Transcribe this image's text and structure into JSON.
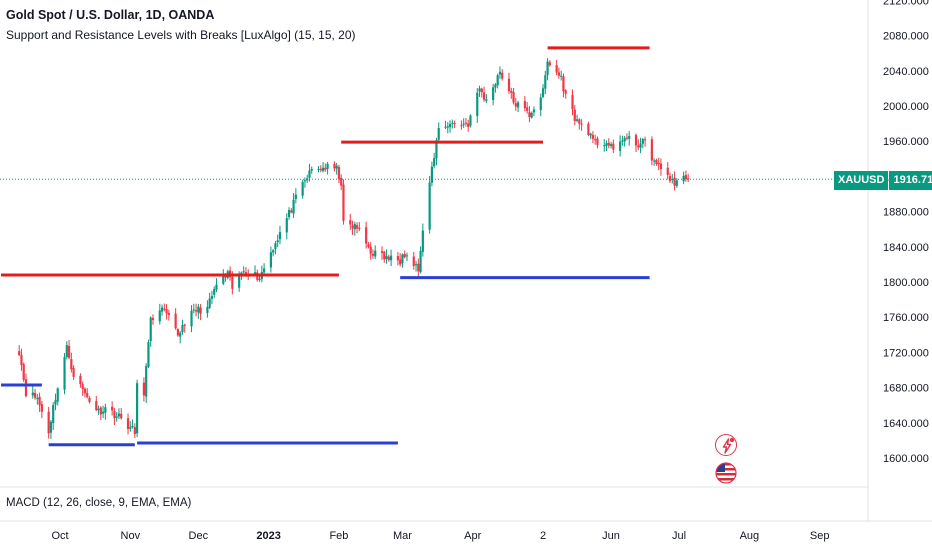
{
  "header": {
    "title": "Gold Spot / U.S. Dollar, 1D, OANDA",
    "indicator": "Support and Resistance Levels with Breaks [LuxAlgo] (15, 15, 20)"
  },
  "macd_label": "MACD (12, 26, close, 9, EMA, EMA)",
  "price_badge": {
    "symbol": "XAUUSD",
    "price": "1916.715"
  },
  "colors": {
    "up": "#089981",
    "down": "#f23645",
    "resistance": "#e51c1c",
    "support": "#2a3fd6",
    "last_price": "#089981"
  },
  "icons": [
    "flash-alert-icon",
    "us-flag-icon"
  ],
  "chart_data": {
    "type": "candlestick",
    "ylim": [
      1580,
      2120
    ],
    "y_ticks": [
      "2120.000",
      "2080.000",
      "2040.000",
      "2000.000",
      "1960.000",
      "1920.000",
      "1880.000",
      "1840.000",
      "1800.000",
      "1760.000",
      "1720.000",
      "1680.000",
      "1640.000",
      "1600.000"
    ],
    "x_ticks": [
      {
        "label": "Oct",
        "date": "2022-10-01"
      },
      {
        "label": "Nov",
        "date": "2022-11-01"
      },
      {
        "label": "Dec",
        "date": "2022-12-01"
      },
      {
        "label": "2023",
        "date": "2023-01-01"
      },
      {
        "label": "Feb",
        "date": "2023-02-01"
      },
      {
        "label": "Mar",
        "date": "2023-03-01"
      },
      {
        "label": "Apr",
        "date": "2023-04-01"
      },
      {
        "label": "2",
        "date": "2023-05-02"
      },
      {
        "label": "Jun",
        "date": "2023-06-01"
      },
      {
        "label": "Jul",
        "date": "2023-07-01"
      },
      {
        "label": "Aug",
        "date": "2023-08-01"
      },
      {
        "label": "Sep",
        "date": "2023-09-01"
      }
    ],
    "last_price": 1916.715,
    "close_path": [
      [
        "2022-09-13",
        1722
      ],
      [
        "2022-09-16",
        1675
      ],
      [
        "2022-09-21",
        1668
      ],
      [
        "2022-09-26",
        1630
      ],
      [
        "2022-09-28",
        1658
      ],
      [
        "2022-10-04",
        1725
      ],
      [
        "2022-10-07",
        1695
      ],
      [
        "2022-10-12",
        1673
      ],
      [
        "2022-10-18",
        1653
      ],
      [
        "2022-10-21",
        1657
      ],
      [
        "2022-10-28",
        1645
      ],
      [
        "2022-11-03",
        1629
      ],
      [
        "2022-11-04",
        1681
      ],
      [
        "2022-11-07",
        1676
      ],
      [
        "2022-11-10",
        1755
      ],
      [
        "2022-11-14",
        1771
      ],
      [
        "2022-11-17",
        1762
      ],
      [
        "2022-11-22",
        1740
      ],
      [
        "2022-11-25",
        1755
      ],
      [
        "2022-11-30",
        1768
      ],
      [
        "2022-12-05",
        1770
      ],
      [
        "2022-12-09",
        1797
      ],
      [
        "2022-12-14",
        1808
      ],
      [
        "2022-12-16",
        1793
      ],
      [
        "2022-12-21",
        1815
      ],
      [
        "2022-12-28",
        1805
      ],
      [
        "2023-01-03",
        1840
      ],
      [
        "2023-01-09",
        1872
      ],
      [
        "2023-01-16",
        1911
      ],
      [
        "2023-01-20",
        1927
      ],
      [
        "2023-01-26",
        1930
      ],
      [
        "2023-01-31",
        1928
      ],
      [
        "2023-02-02",
        1913
      ],
      [
        "2023-02-03",
        1865
      ],
      [
        "2023-02-09",
        1862
      ],
      [
        "2023-02-15",
        1835
      ],
      [
        "2023-02-22",
        1827
      ],
      [
        "2023-02-28",
        1825
      ],
      [
        "2023-03-01",
        1836
      ],
      [
        "2023-03-08",
        1814
      ],
      [
        "2023-03-13",
        1913
      ],
      [
        "2023-03-17",
        1975
      ],
      [
        "2023-03-20",
        1979
      ],
      [
        "2023-03-24",
        1980
      ],
      [
        "2023-03-30",
        1980
      ],
      [
        "2023-04-04",
        2020
      ],
      [
        "2023-04-07",
        2005
      ],
      [
        "2023-04-13",
        2040
      ],
      [
        "2023-04-19",
        2005
      ],
      [
        "2023-04-26",
        1990
      ],
      [
        "2023-05-02",
        2016
      ],
      [
        "2023-05-04",
        2050
      ],
      [
        "2023-05-10",
        2032
      ],
      [
        "2023-05-12",
        2011
      ],
      [
        "2023-05-17",
        1982
      ],
      [
        "2023-05-22",
        1972
      ],
      [
        "2023-05-24",
        1958
      ],
      [
        "2023-05-30",
        1959
      ],
      [
        "2023-06-02",
        1948
      ],
      [
        "2023-06-06",
        1964
      ],
      [
        "2023-06-09",
        1961
      ],
      [
        "2023-06-12",
        1957
      ],
      [
        "2023-06-16",
        1958
      ],
      [
        "2023-06-21",
        1932
      ],
      [
        "2023-06-26",
        1923
      ],
      [
        "2023-06-29",
        1908
      ],
      [
        "2023-06-30",
        1919
      ],
      [
        "2023-07-03",
        1920
      ],
      [
        "2023-07-05",
        1916.715
      ]
    ],
    "levels": [
      {
        "kind": "resistance",
        "price": 1808,
        "from": "2022-09-05",
        "to": "2023-02-01"
      },
      {
        "kind": "resistance",
        "price": 1959,
        "from": "2023-02-02",
        "to": "2023-05-02"
      },
      {
        "kind": "resistance",
        "price": 2066,
        "from": "2023-05-04",
        "to": "2023-06-18"
      },
      {
        "kind": "support",
        "price": 1683,
        "from": "2022-09-05",
        "to": "2022-09-23"
      },
      {
        "kind": "support",
        "price": 1615,
        "from": "2022-09-26",
        "to": "2022-11-03"
      },
      {
        "kind": "support",
        "price": 1617,
        "from": "2022-11-04",
        "to": "2023-02-27"
      },
      {
        "kind": "support",
        "price": 1805,
        "from": "2023-02-28",
        "to": "2023-06-18"
      }
    ]
  }
}
